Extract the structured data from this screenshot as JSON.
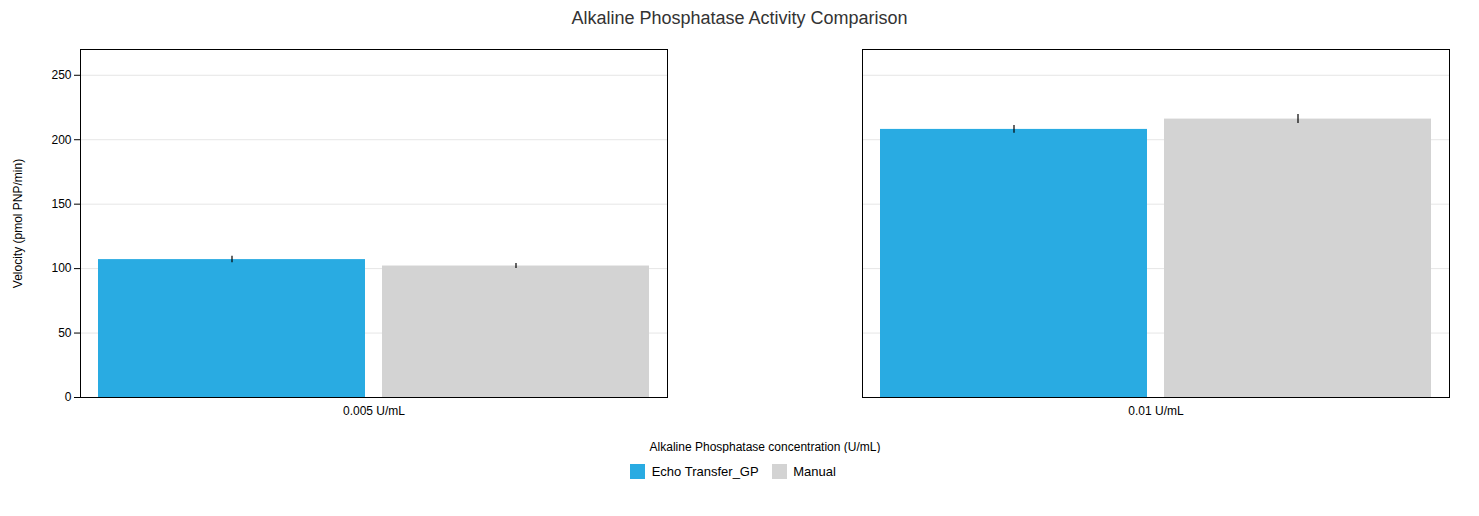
{
  "chart_data": {
    "type": "bar",
    "title": "Alkaline Phosphatase Activity Comparison",
    "xlabel": "Alkaline Phosphatase concentration (U/mL)",
    "ylabel": "Velocity (pmol PNP/min)",
    "categories": [
      "0.005 U/mL",
      "0.01 U/mL"
    ],
    "series": [
      {
        "name": "Echo Transfer_GP",
        "color": "#29ABE2",
        "values": [
          107,
          208
        ],
        "errors": [
          2.5,
          3.0
        ]
      },
      {
        "name": "Manual",
        "color": "#D3D3D3",
        "values": [
          102,
          216
        ],
        "errors": [
          2.0,
          3.5
        ]
      }
    ],
    "ylim": [
      0,
      270
    ],
    "yticks": [
      0,
      50,
      100,
      150,
      200,
      250
    ],
    "grid": true,
    "legend": "bottom"
  }
}
